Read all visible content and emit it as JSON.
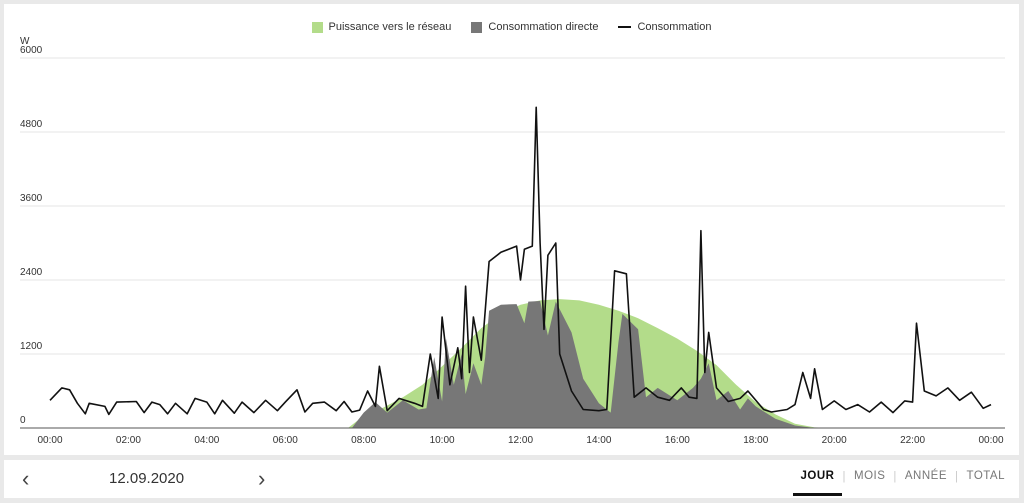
{
  "legend": {
    "grid_feed": "Puissance vers le réseau",
    "direct_consumption": "Consommation directe",
    "consumption": "Consommation"
  },
  "colors": {
    "grid_feed": "#b3dc8a",
    "direct_consumption": "#777777",
    "consumption": "#111111"
  },
  "chart_data": {
    "type": "area",
    "ylabel": "W",
    "ylim": [
      0,
      6000
    ],
    "yticks": [
      "6000",
      "4800",
      "3600",
      "2400",
      "1200",
      "0"
    ],
    "xticks": [
      "00:00",
      "02:00",
      "04:00",
      "06:00",
      "08:00",
      "10:00",
      "12:00",
      "14:00",
      "16:00",
      "18:00",
      "20:00",
      "22:00",
      "00:00"
    ],
    "xlim": [
      0,
      24
    ],
    "grid": true,
    "legend_position": "top-center",
    "series": [
      {
        "name": "Puissance vers le réseau",
        "kind": "area",
        "points": [
          [
            0,
            0
          ],
          [
            7.6,
            0
          ],
          [
            8.0,
            200
          ],
          [
            8.5,
            330
          ],
          [
            9.0,
            500
          ],
          [
            9.5,
            700
          ],
          [
            10.0,
            1000
          ],
          [
            10.5,
            1300
          ],
          [
            11.0,
            1620
          ],
          [
            11.5,
            1850
          ],
          [
            12.0,
            2000
          ],
          [
            12.5,
            2070
          ],
          [
            13.0,
            2090
          ],
          [
            13.5,
            2070
          ],
          [
            14.0,
            2000
          ],
          [
            14.5,
            1900
          ],
          [
            15.0,
            1780
          ],
          [
            15.5,
            1620
          ],
          [
            16.0,
            1450
          ],
          [
            16.5,
            1250
          ],
          [
            17.0,
            1020
          ],
          [
            17.5,
            700
          ],
          [
            18.0,
            420
          ],
          [
            18.5,
            220
          ],
          [
            19.0,
            70
          ],
          [
            19.5,
            10
          ],
          [
            20.0,
            0
          ],
          [
            24,
            0
          ]
        ]
      },
      {
        "name": "Consommation directe",
        "kind": "area",
        "points": [
          [
            0,
            0
          ],
          [
            7.7,
            0
          ],
          [
            8.0,
            250
          ],
          [
            8.3,
            420
          ],
          [
            8.6,
            250
          ],
          [
            9.0,
            450
          ],
          [
            9.4,
            300
          ],
          [
            9.6,
            320
          ],
          [
            9.8,
            1150
          ],
          [
            10.0,
            430
          ],
          [
            10.1,
            1450
          ],
          [
            10.3,
            700
          ],
          [
            10.5,
            1200
          ],
          [
            10.6,
            550
          ],
          [
            10.8,
            1050
          ],
          [
            11.0,
            700
          ],
          [
            11.1,
            1150
          ],
          [
            11.2,
            1900
          ],
          [
            11.5,
            2000
          ],
          [
            11.9,
            2010
          ],
          [
            12.1,
            1700
          ],
          [
            12.2,
            2050
          ],
          [
            12.5,
            2060
          ],
          [
            12.7,
            1500
          ],
          [
            12.9,
            2050
          ],
          [
            13.3,
            1550
          ],
          [
            13.6,
            800
          ],
          [
            14.0,
            400
          ],
          [
            14.3,
            250
          ],
          [
            14.5,
            1400
          ],
          [
            14.6,
            1850
          ],
          [
            15.0,
            1600
          ],
          [
            15.2,
            500
          ],
          [
            15.5,
            650
          ],
          [
            16.0,
            450
          ],
          [
            16.4,
            650
          ],
          [
            16.6,
            800
          ],
          [
            16.8,
            1050
          ],
          [
            17.0,
            450
          ],
          [
            17.3,
            600
          ],
          [
            17.6,
            300
          ],
          [
            17.8,
            480
          ],
          [
            18.0,
            350
          ],
          [
            18.5,
            150
          ],
          [
            19.0,
            40
          ],
          [
            19.5,
            0
          ],
          [
            24,
            0
          ]
        ]
      },
      {
        "name": "Consommation",
        "kind": "line",
        "points": [
          [
            0,
            450
          ],
          [
            0.3,
            650
          ],
          [
            0.5,
            620
          ],
          [
            0.7,
            400
          ],
          [
            0.9,
            230
          ],
          [
            1.0,
            400
          ],
          [
            1.4,
            350
          ],
          [
            1.5,
            220
          ],
          [
            1.7,
            420
          ],
          [
            2.2,
            430
          ],
          [
            2.4,
            250
          ],
          [
            2.6,
            420
          ],
          [
            2.8,
            380
          ],
          [
            3.0,
            230
          ],
          [
            3.2,
            400
          ],
          [
            3.5,
            230
          ],
          [
            3.7,
            480
          ],
          [
            4.0,
            420
          ],
          [
            4.2,
            230
          ],
          [
            4.4,
            450
          ],
          [
            4.7,
            240
          ],
          [
            4.9,
            420
          ],
          [
            5.2,
            250
          ],
          [
            5.5,
            450
          ],
          [
            5.8,
            280
          ],
          [
            6.0,
            420
          ],
          [
            6.3,
            620
          ],
          [
            6.5,
            260
          ],
          [
            6.7,
            400
          ],
          [
            7.0,
            420
          ],
          [
            7.3,
            280
          ],
          [
            7.5,
            430
          ],
          [
            7.7,
            260
          ],
          [
            7.9,
            290
          ],
          [
            8.1,
            600
          ],
          [
            8.3,
            350
          ],
          [
            8.4,
            1000
          ],
          [
            8.6,
            280
          ],
          [
            8.9,
            480
          ],
          [
            9.3,
            400
          ],
          [
            9.5,
            350
          ],
          [
            9.7,
            1200
          ],
          [
            9.9,
            480
          ],
          [
            10.0,
            1800
          ],
          [
            10.2,
            700
          ],
          [
            10.4,
            1300
          ],
          [
            10.5,
            800
          ],
          [
            10.6,
            2300
          ],
          [
            10.7,
            900
          ],
          [
            10.8,
            1800
          ],
          [
            11.0,
            1100
          ],
          [
            11.2,
            2700
          ],
          [
            11.5,
            2850
          ],
          [
            11.9,
            2950
          ],
          [
            12.0,
            2400
          ],
          [
            12.1,
            2900
          ],
          [
            12.3,
            2950
          ],
          [
            12.4,
            5200
          ],
          [
            12.5,
            3000
          ],
          [
            12.6,
            1600
          ],
          [
            12.7,
            2800
          ],
          [
            12.9,
            3000
          ],
          [
            13.0,
            1200
          ],
          [
            13.3,
            600
          ],
          [
            13.6,
            300
          ],
          [
            14.0,
            280
          ],
          [
            14.2,
            300
          ],
          [
            14.4,
            2550
          ],
          [
            14.7,
            2500
          ],
          [
            14.9,
            500
          ],
          [
            15.2,
            650
          ],
          [
            15.5,
            500
          ],
          [
            15.8,
            450
          ],
          [
            16.1,
            650
          ],
          [
            16.3,
            500
          ],
          [
            16.5,
            480
          ],
          [
            16.6,
            3200
          ],
          [
            16.7,
            900
          ],
          [
            16.8,
            1550
          ],
          [
            17.0,
            650
          ],
          [
            17.3,
            430
          ],
          [
            17.6,
            480
          ],
          [
            17.8,
            600
          ],
          [
            18.2,
            300
          ],
          [
            18.4,
            260
          ],
          [
            18.8,
            300
          ],
          [
            19.0,
            380
          ],
          [
            19.2,
            900
          ],
          [
            19.4,
            480
          ],
          [
            19.5,
            960
          ],
          [
            19.7,
            300
          ],
          [
            20.0,
            440
          ],
          [
            20.3,
            300
          ],
          [
            20.6,
            380
          ],
          [
            20.9,
            260
          ],
          [
            21.2,
            420
          ],
          [
            21.5,
            250
          ],
          [
            21.8,
            440
          ],
          [
            22.0,
            420
          ],
          [
            22.1,
            1700
          ],
          [
            22.3,
            600
          ],
          [
            22.6,
            520
          ],
          [
            22.9,
            650
          ],
          [
            23.2,
            450
          ],
          [
            23.5,
            580
          ],
          [
            23.8,
            320
          ],
          [
            24.0,
            380
          ]
        ]
      }
    ]
  },
  "footer": {
    "prev_icon": "chevron-left-icon",
    "next_icon": "chevron-right-icon",
    "date": "12.09.2020",
    "tabs": [
      "JOUR",
      "MOIS",
      "ANNÉE",
      "TOTAL"
    ],
    "active_tab": "JOUR"
  }
}
